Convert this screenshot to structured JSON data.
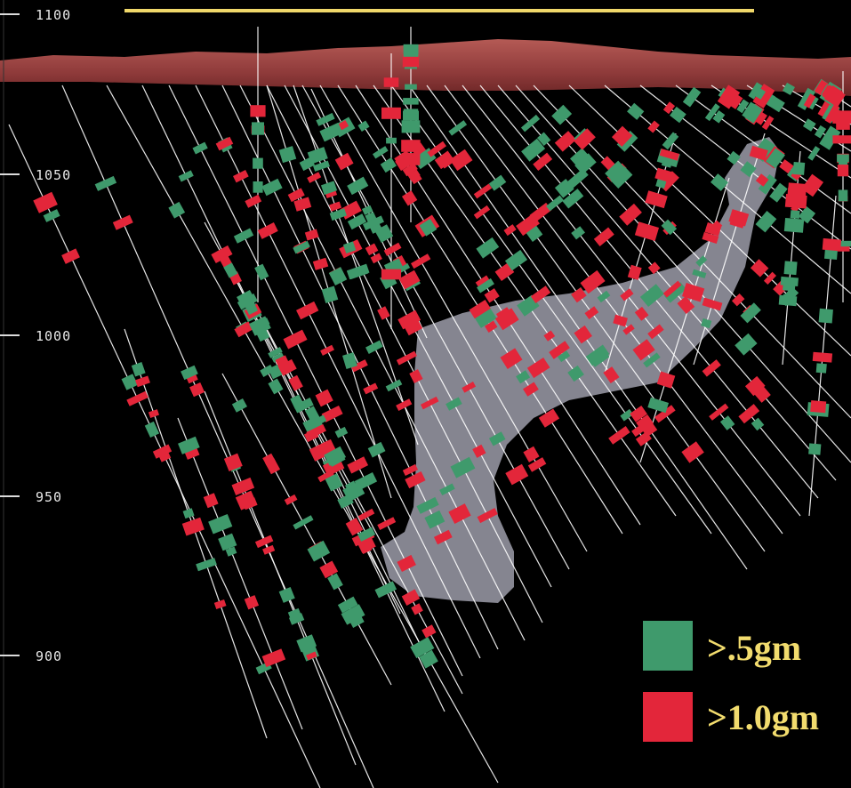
{
  "section": {
    "title_visible": "",
    "y_axis": {
      "ticks": [
        {
          "label": "1100",
          "value": 1100
        },
        {
          "label": "1050",
          "value": 1050
        },
        {
          "label": "1000",
          "value": 1000
        },
        {
          "label": "950",
          "value": 950
        },
        {
          "label": "900",
          "value": 900
        }
      ]
    }
  },
  "legend": {
    "items": [
      {
        "label": ">.5gm",
        "color": "#3f9a6c"
      },
      {
        "label": ">1.0gm",
        "color": "#e3263a"
      }
    ]
  },
  "colors": {
    "background": "#000000",
    "surface": "#8e3a3a",
    "drillhole": "#ffffff",
    "orebody": "#b8b8c8",
    "title_rule": "#f0d86a"
  }
}
